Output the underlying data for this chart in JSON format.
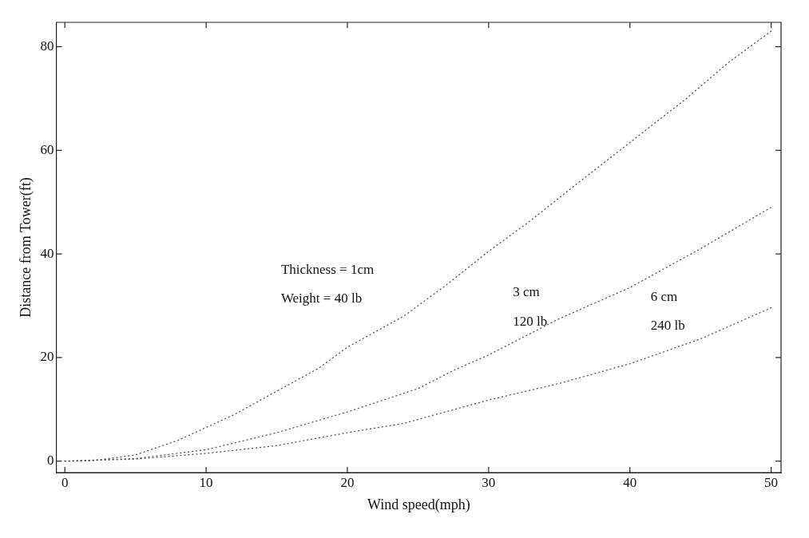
{
  "chart_data": {
    "type": "line",
    "xlabel": "Wind speed(mph)",
    "ylabel": "Distance from Tower(ft)",
    "x": [
      0,
      2,
      5,
      8,
      10,
      12,
      15,
      18,
      20,
      24,
      27,
      30,
      33,
      36,
      40,
      44,
      47,
      50
    ],
    "series": [
      {
        "color": "#555555",
        "values": [
          0,
          0.1,
          1.2,
          4,
          6.5,
          9,
          13.5,
          18,
          22,
          28,
          34,
          40.5,
          46.5,
          53,
          61.5,
          70,
          77,
          83
        ]
      },
      {
        "color": "#555555",
        "x": [
          0,
          5,
          10,
          15,
          20,
          25,
          27.5,
          30,
          35,
          40,
          45,
          50
        ],
        "values": [
          0,
          0.5,
          2.2,
          5.5,
          9.5,
          14,
          17.5,
          20.5,
          27.5,
          33.5,
          41,
          49
        ]
      },
      {
        "color": "#555555",
        "x": [
          0,
          5,
          10,
          15,
          20,
          24,
          30,
          35,
          40,
          45,
          50
        ],
        "values": [
          0,
          0.4,
          1.5,
          3,
          5.5,
          7.3,
          11.8,
          15,
          18.8,
          23.6,
          29.6
        ]
      }
    ],
    "xlim": [
      -0.6,
      50.7
    ],
    "ylim": [
      -2.2,
      84.7
    ],
    "xticks": [
      0,
      10,
      20,
      30,
      40,
      50
    ],
    "yticks": [
      0,
      20,
      40,
      60,
      80
    ],
    "grid": false,
    "legend": false,
    "marker": "none",
    "line_style": "dotted",
    "annotations": [
      "Thickness = 1cm",
      "Weight = 40 lb",
      "3 cm",
      "120 lb",
      "6 cm",
      "240 lb"
    ]
  }
}
